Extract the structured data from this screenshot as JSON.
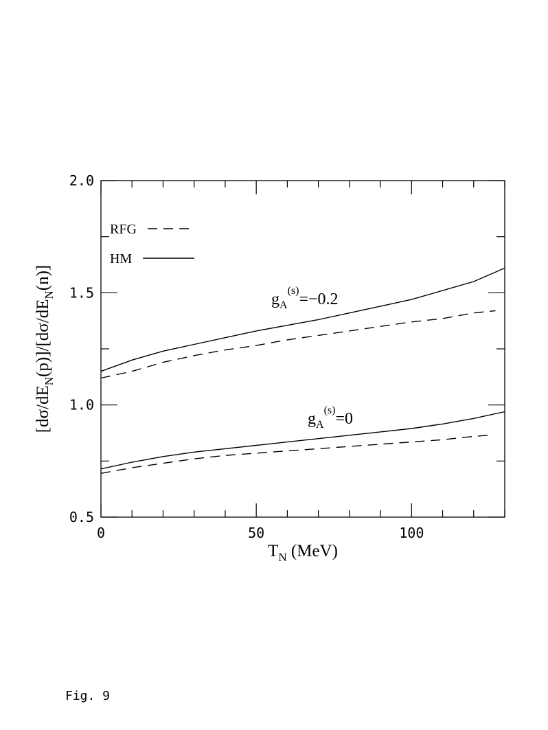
{
  "caption": "Fig. 9",
  "chart_data": {
    "type": "line",
    "xlabel": {
      "main": "T",
      "sub": "N",
      "rest": " (MeV)"
    },
    "ylabel": "[dσ/dE_N(p)]/[dσ/dE_N(n)]",
    "ylabel_parts": [
      "[dσ/dE",
      "N",
      "(p)]/[dσ/dE",
      "N",
      "(n)]"
    ],
    "xlim": [
      0,
      130
    ],
    "ylim": [
      0.5,
      2.0
    ],
    "x_ticks": [
      0,
      50,
      100
    ],
    "x_tick_labels": [
      "0",
      "50",
      "100"
    ],
    "x_minor_step": 10,
    "y_ticks": [
      0.5,
      1.0,
      1.5,
      2.0
    ],
    "y_tick_labels": [
      "0.5",
      "1.0",
      "1.5",
      "2.0"
    ],
    "y_minor_step": 0.25,
    "grid": false,
    "legend": {
      "position": "top-left",
      "entries": [
        {
          "label": "RFG",
          "style": "dashed"
        },
        {
          "label": "HM",
          "style": "solid"
        }
      ]
    },
    "annotations": [
      {
        "base": "g",
        "sub": "A",
        "sup": "(s)",
        "rest": "=−0.2"
      },
      {
        "base": "g",
        "sub": "A",
        "sup": "(s)",
        "rest": "=0"
      }
    ],
    "series": [
      {
        "group": "-0.2",
        "style": "solid",
        "x": [
          0,
          10,
          20,
          30,
          40,
          50,
          60,
          70,
          80,
          90,
          100,
          110,
          120,
          130
        ],
        "y": [
          1.15,
          1.2,
          1.24,
          1.27,
          1.3,
          1.33,
          1.355,
          1.38,
          1.41,
          1.44,
          1.47,
          1.51,
          1.55,
          1.61
        ]
      },
      {
        "group": "-0.2",
        "style": "dashed",
        "x": [
          0,
          10,
          20,
          30,
          40,
          50,
          60,
          70,
          80,
          90,
          100,
          110,
          120,
          127
        ],
        "y": [
          1.12,
          1.15,
          1.19,
          1.22,
          1.245,
          1.265,
          1.29,
          1.31,
          1.33,
          1.35,
          1.37,
          1.385,
          1.41,
          1.42
        ]
      },
      {
        "group": "0",
        "style": "solid",
        "x": [
          0,
          10,
          20,
          30,
          40,
          50,
          60,
          70,
          80,
          90,
          100,
          110,
          120,
          130
        ],
        "y": [
          0.715,
          0.745,
          0.77,
          0.79,
          0.805,
          0.82,
          0.835,
          0.85,
          0.865,
          0.88,
          0.895,
          0.915,
          0.94,
          0.97
        ]
      },
      {
        "group": "0",
        "style": "dashed",
        "x": [
          0,
          10,
          20,
          30,
          40,
          50,
          60,
          70,
          80,
          90,
          100,
          110,
          120,
          125
        ],
        "y": [
          0.695,
          0.72,
          0.74,
          0.76,
          0.775,
          0.785,
          0.795,
          0.805,
          0.815,
          0.825,
          0.835,
          0.845,
          0.86,
          0.865
        ]
      }
    ]
  }
}
